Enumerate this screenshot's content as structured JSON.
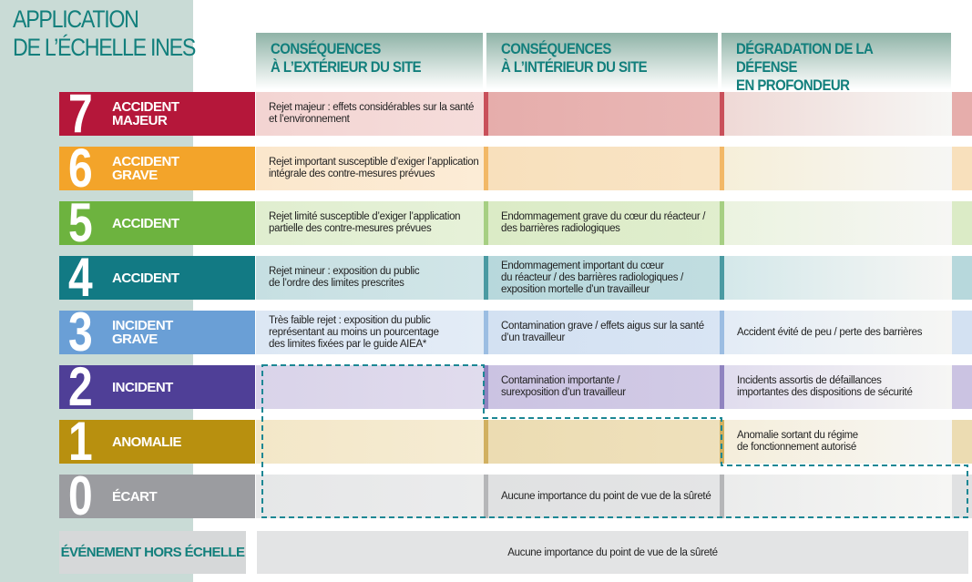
{
  "title": "APPLICATION\nDE L’ÉCHELLE INES",
  "headers": [
    "CONSÉQUENCES\nÀ L’EXTÉRIEUR DU SITE",
    "CONSÉQUENCES\nÀ L’INTÉRIEUR DU SITE",
    "DÉGRADATION DE LA DÉFENSE\nEN PROFONDEUR"
  ],
  "levels": [
    {
      "num": "7",
      "name": "ACCIDENT\nMAJEUR",
      "color": "#b5173a",
      "tints": [
        "#f3d4d2",
        "#e6adab",
        "#efd9d6"
      ],
      "stripe": "#c9505a",
      "ext": "Rejet majeur : effets considérables sur la santé\net l’environnement",
      "int": "",
      "def": ""
    },
    {
      "num": "6",
      "name": "ACCIDENT\nGRAVE",
      "color": "#f3a42a",
      "tints": [
        "#fbe7cc",
        "#f8e0bc",
        "#f6efd9"
      ],
      "stripe": "#f2b866",
      "ext": "Rejet important susceptible d’exiger l’application\nintégrale des contre-mesures prévues",
      "int": "",
      "def": ""
    },
    {
      "num": "5",
      "name": "ACCIDENT",
      "color": "#6db33f",
      "tints": [
        "#e0eecf",
        "#dbebc6",
        "#ebf3e0"
      ],
      "stripe": "#a6cf82",
      "ext": "Rejet limité susceptible d’exiger l’application\npartielle des contre-mesures prévues",
      "int": "Endommagement grave du cœur du réacteur /\ndes barrières radiologiques",
      "def": ""
    },
    {
      "num": "4",
      "name": "ACCIDENT",
      "color": "#127a84",
      "tints": [
        "#c6dfe2",
        "#b7d8dc",
        "#d4e8ea"
      ],
      "stripe": "#4a9aa2",
      "ext": "Rejet mineur : exposition du public\nde l’ordre des limites prescrites",
      "int": "Endommagement important du cœur\ndu réacteur / des barrières radiologiques /\nexposition mortelle d’un travailleur",
      "def": ""
    },
    {
      "num": "3",
      "name": "INCIDENT\nGRAVE",
      "color": "#6a9fd6",
      "tints": [
        "#dce7f4",
        "#d3e1f2",
        "#e3ecf6"
      ],
      "stripe": "#9bbde2",
      "ext": "Très faible rejet : exposition du public\nreprésentant au moins un pourcentage\ndes limites fixées par le guide AIEA*",
      "int": "Contamination grave / effets aigus sur la santé\nd’un travailleur",
      "def": "Accident évité de peu / perte des barrières"
    },
    {
      "num": "2",
      "name": "INCIDENT",
      "color": "#4f3f97",
      "tints": [
        "#d9d3e9",
        "#cbc3e2",
        "#e0dcee"
      ],
      "stripe": "#8f83c0",
      "ext": "",
      "int": "Contamination importante /\nsurexposition d’un travailleur",
      "def": "Incidents assortis de défaillances\nimportantes des dispositions de sécurité"
    },
    {
      "num": "1",
      "name": "ANOMALIE",
      "color": "#b8900f",
      "tints": [
        "#f3e7c8",
        "#ecdcb2",
        "#f5eedb"
      ],
      "stripe": "#d1b060",
      "ext": "",
      "int": "",
      "def": "Anomalie sortant du régime\nde fonctionnement autorisé"
    },
    {
      "num": "0",
      "name": "ÉCART",
      "color": "#9b9ca0",
      "tints": [
        "#e6e7e8",
        "#e0e1e2",
        "#ebecec"
      ],
      "stripe": "#b5b6b8",
      "ext": "",
      "int": "Aucune importance du point de vue de la sûreté",
      "def": ""
    }
  ],
  "hors_echelle": {
    "label": "ÉVÉNEMENT HORS ÉCHELLE",
    "text": "Aucune importance du point de vue de la sûreté"
  },
  "dashed_color": "#1c8794"
}
